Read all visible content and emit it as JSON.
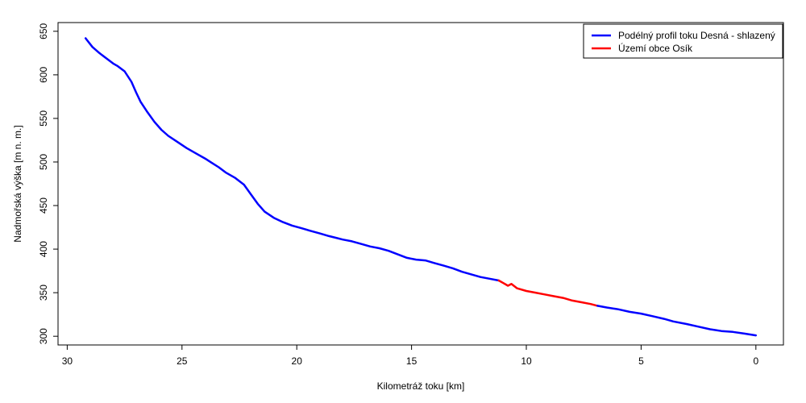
{
  "chart_data": {
    "type": "line",
    "xlabel": "Kilometráž toku [km]",
    "ylabel": "Nadmořská výška [m n. m.]",
    "xlim": [
      30.4,
      -1.2
    ],
    "ylim": [
      290,
      660
    ],
    "x_ticks": [
      30,
      25,
      20,
      15,
      10,
      5,
      0
    ],
    "y_ticks": [
      300,
      350,
      400,
      450,
      500,
      550,
      600,
      650
    ],
    "grid": false,
    "legend_position": "top-right",
    "series": [
      {
        "name": "Podélný profil toku Desná - shlazený",
        "color": "#0000ff",
        "points": [
          [
            29.2,
            642
          ],
          [
            28.9,
            632
          ],
          [
            28.6,
            625
          ],
          [
            28.3,
            619
          ],
          [
            28.0,
            613
          ],
          [
            27.8,
            610
          ],
          [
            27.5,
            604
          ],
          [
            27.2,
            592
          ],
          [
            27.0,
            580
          ],
          [
            26.8,
            569
          ],
          [
            26.5,
            557
          ],
          [
            26.2,
            546
          ],
          [
            25.9,
            537
          ],
          [
            25.6,
            530
          ],
          [
            25.2,
            523
          ],
          [
            24.8,
            516
          ],
          [
            24.4,
            510
          ],
          [
            24.0,
            504
          ],
          [
            23.7,
            499
          ],
          [
            23.4,
            494
          ],
          [
            23.1,
            488
          ],
          [
            22.7,
            482
          ],
          [
            22.3,
            474
          ],
          [
            22.0,
            463
          ],
          [
            21.7,
            452
          ],
          [
            21.4,
            443
          ],
          [
            21.0,
            436
          ],
          [
            20.6,
            431
          ],
          [
            20.2,
            427
          ],
          [
            19.8,
            424
          ],
          [
            19.4,
            421
          ],
          [
            19.0,
            418
          ],
          [
            18.6,
            415
          ],
          [
            18.3,
            413
          ],
          [
            18.0,
            411
          ],
          [
            17.6,
            409
          ],
          [
            17.2,
            406
          ],
          [
            16.8,
            403
          ],
          [
            16.4,
            401
          ],
          [
            16.0,
            398
          ],
          [
            15.6,
            394
          ],
          [
            15.2,
            390
          ],
          [
            14.8,
            388
          ],
          [
            14.4,
            387
          ],
          [
            14.0,
            384
          ],
          [
            13.6,
            381
          ],
          [
            13.2,
            378
          ],
          [
            12.8,
            374
          ],
          [
            12.4,
            371
          ],
          [
            12.0,
            368
          ],
          [
            11.6,
            366
          ],
          [
            11.2,
            364
          ]
        ]
      },
      {
        "name": "Území obce Osík",
        "color": "#ff0000",
        "points": [
          [
            11.2,
            364
          ],
          [
            11.0,
            361
          ],
          [
            10.8,
            358
          ],
          [
            10.65,
            360
          ],
          [
            10.4,
            355
          ],
          [
            10.0,
            352
          ],
          [
            9.6,
            350
          ],
          [
            9.2,
            348
          ],
          [
            8.8,
            346
          ],
          [
            8.4,
            344
          ],
          [
            8.0,
            341
          ],
          [
            7.6,
            339
          ],
          [
            7.2,
            337
          ],
          [
            6.9,
            335
          ]
        ]
      },
      {
        "name": "",
        "color": "#0000ff",
        "points": [
          [
            6.9,
            335
          ],
          [
            6.5,
            333
          ],
          [
            6.0,
            331
          ],
          [
            5.5,
            328
          ],
          [
            5.0,
            326
          ],
          [
            4.5,
            323
          ],
          [
            4.0,
            320
          ],
          [
            3.6,
            317
          ],
          [
            3.0,
            314
          ],
          [
            2.5,
            311
          ],
          [
            2.0,
            308
          ],
          [
            1.5,
            306
          ],
          [
            1.0,
            305
          ],
          [
            0.5,
            303
          ],
          [
            0.0,
            301
          ]
        ]
      }
    ]
  }
}
